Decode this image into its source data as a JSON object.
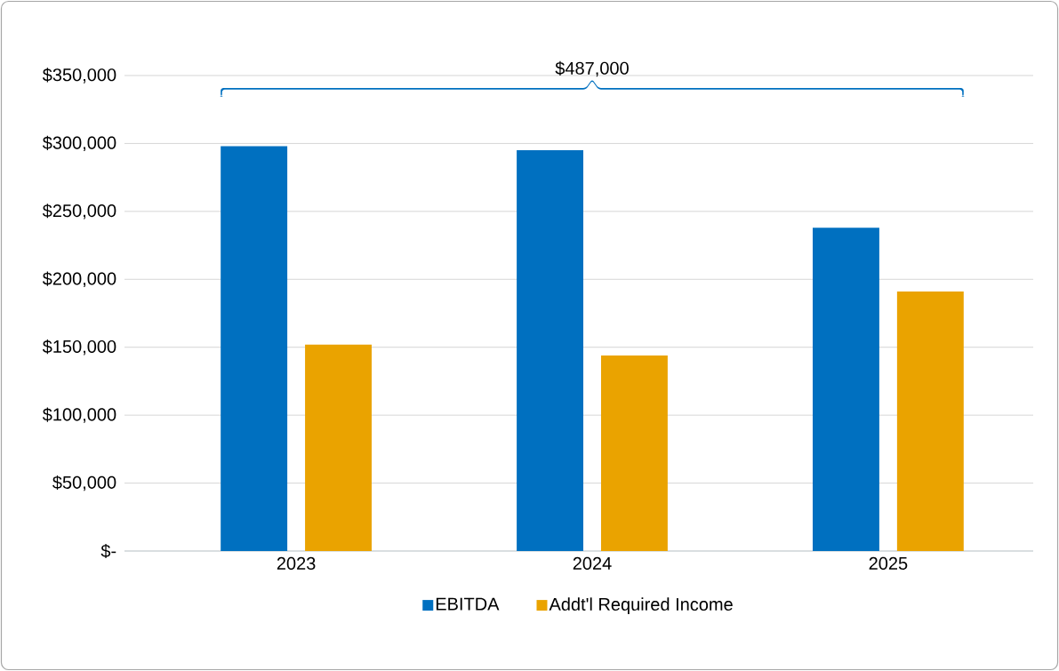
{
  "chart_data": {
    "type": "bar",
    "categories": [
      "2023",
      "2024",
      "2025"
    ],
    "series": [
      {
        "name": "EBITDA",
        "color": "#0070c0",
        "values": [
          298000,
          295000,
          238000
        ]
      },
      {
        "name": "Addt'l Required Income",
        "color": "#eaa300",
        "values": [
          152000,
          144000,
          191000
        ]
      }
    ],
    "ylim": [
      0,
      350000
    ],
    "yticks": [
      {
        "value": 0,
        "label": "$-"
      },
      {
        "value": 50000,
        "label": "$50,000"
      },
      {
        "value": 100000,
        "label": "$100,000"
      },
      {
        "value": 150000,
        "label": "$150,000"
      },
      {
        "value": 200000,
        "label": "$200,000"
      },
      {
        "value": 250000,
        "label": "$250,000"
      },
      {
        "value": 300000,
        "label": "$300,000"
      },
      {
        "value": 350000,
        "label": "$350,000"
      }
    ],
    "grid": "y",
    "legend": "bottom",
    "annotations": [
      "$487,000"
    ]
  }
}
